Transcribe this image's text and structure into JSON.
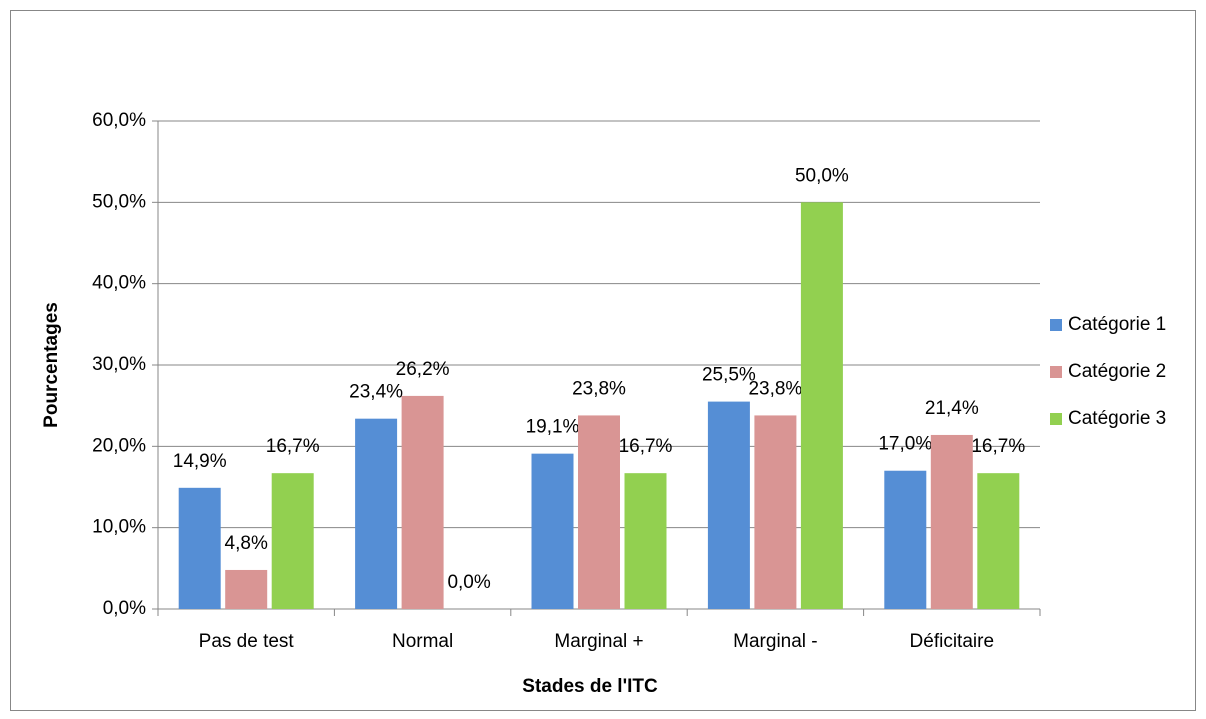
{
  "chart_data": {
    "type": "bar",
    "x_label": "Stades de l'ITC",
    "y_label": "Pourcentages",
    "categories": [
      "Pas de test",
      "Normal",
      "Marginal +",
      "Marginal -",
      "Déficitaire"
    ],
    "series": [
      {
        "name": "Catégorie 1",
        "color": "#558ed5",
        "values": [
          14.9,
          23.4,
          19.1,
          25.5,
          17.0
        ],
        "value_labels": [
          "14,9%",
          "23,4%",
          "19,1%",
          "25,5%",
          "17,0%"
        ]
      },
      {
        "name": "Catégorie 2",
        "color": "#d99594",
        "values": [
          4.8,
          26.2,
          23.8,
          23.8,
          21.4
        ],
        "value_labels": [
          "4,8%",
          "26,2%",
          "23,8%",
          "23,8%",
          "21,4%"
        ]
      },
      {
        "name": "Catégorie 3",
        "color": "#92d050",
        "values": [
          16.7,
          0.0,
          16.7,
          50.0,
          16.7
        ],
        "value_labels": [
          "16,7%",
          "0,0%",
          "16,7%",
          "50,0%",
          "16,7%"
        ]
      }
    ],
    "ylim": [
      0,
      60
    ],
    "yticks": [
      {
        "value": 0,
        "label": "0,0%"
      },
      {
        "value": 10,
        "label": "10,0%"
      },
      {
        "value": 20,
        "label": "20,0%"
      },
      {
        "value": 30,
        "label": "30,0%"
      },
      {
        "value": 40,
        "label": "40,0%"
      },
      {
        "value": 50,
        "label": "50,0%"
      },
      {
        "value": 60,
        "label": "60,0%"
      }
    ],
    "grid": true,
    "legend": "right"
  }
}
